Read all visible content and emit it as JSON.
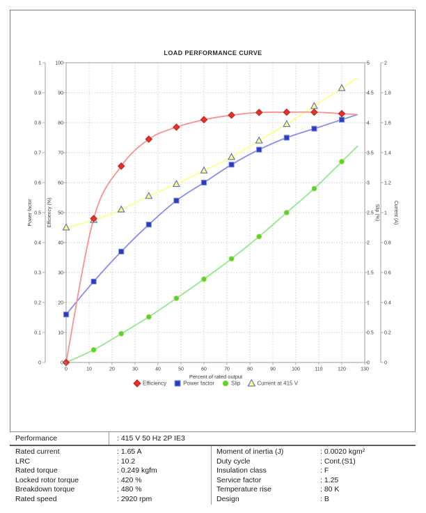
{
  "chart": {
    "title": "LOAD PERFORMANCE CURVE",
    "x_axis": {
      "label": "Percent of rated output",
      "min": 0,
      "max": 130,
      "step": 10
    },
    "axes": {
      "power_factor": {
        "label": "Power factor",
        "min": 0,
        "max": 1,
        "step": 0.1
      },
      "efficiency": {
        "label": "Efficiency (%)",
        "min": 0,
        "max": 100,
        "step": 10
      },
      "slip": {
        "label": "Slip (%)",
        "min": 0,
        "max": 5,
        "step": 0.5
      },
      "current": {
        "label": "Current (A)",
        "min": 0,
        "max": 2,
        "step": 0.2
      }
    },
    "grid_color": "#cdcdcd",
    "spine_color": "#9e9e9e"
  },
  "chart_data": {
    "type": "line",
    "title": "LOAD PERFORMANCE CURVE",
    "xlabel": "Percent of rated output",
    "x": [
      0,
      12,
      24,
      36,
      48,
      60,
      72,
      84,
      96,
      108,
      120
    ],
    "xlim": [
      0,
      130
    ],
    "grid": true,
    "legend_position": "bottom",
    "series": [
      {
        "name": "Efficiency",
        "axis": "efficiency",
        "ylim": [
          0,
          100
        ],
        "marker": "diamond",
        "marker_color": "#e63229",
        "marker_edge": "#b92020",
        "line_color": "#f99191",
        "values": [
          0,
          48,
          65.5,
          74.5,
          78.5,
          81,
          82.5,
          83.4,
          83.5,
          83.5,
          83
        ]
      },
      {
        "name": "Power factor",
        "axis": "power_factor",
        "ylim": [
          0,
          1
        ],
        "marker": "square",
        "marker_color": "#2c3cba",
        "marker_edge": "#7e90ea",
        "line_color": "#8b8bf0",
        "values": [
          0.16,
          0.27,
          0.37,
          0.46,
          0.54,
          0.6,
          0.66,
          0.71,
          0.75,
          0.78,
          0.81
        ]
      },
      {
        "name": "Slip",
        "axis": "slip",
        "ylim": [
          0,
          5
        ],
        "marker": "circle",
        "marker_color": "#47d83e",
        "marker_edge": "#b4cc30",
        "line_color": "#8fe98f",
        "values": [
          0,
          0.21,
          0.48,
          0.76,
          1.07,
          1.39,
          1.73,
          2.1,
          2.5,
          2.9,
          3.35
        ]
      },
      {
        "name": "Current at 415 V",
        "axis": "current",
        "ylim": [
          0,
          2
        ],
        "marker": "triangle",
        "marker_color": "#ffff73",
        "marker_edge": "#5b6bd1",
        "line_color": "#ffff85",
        "values": [
          0.9,
          0.95,
          1.02,
          1.11,
          1.19,
          1.28,
          1.37,
          1.48,
          1.59,
          1.71,
          1.83
        ]
      }
    ]
  },
  "table": {
    "separator": ":",
    "header": {
      "label": "Performance",
      "value": "415 V 50 Hz 2P IE3"
    },
    "left_rows": [
      {
        "label": "Rated current",
        "value": "1.65 A"
      },
      {
        "label": "LRC",
        "value": "10.2"
      },
      {
        "label": "Rated torque",
        "value": "0.249 kgfm"
      },
      {
        "label": "Locked rotor torque",
        "value": "420 %"
      },
      {
        "label": "Breakdown torque",
        "value": "480 %"
      },
      {
        "label": "Rated speed",
        "value": "2920 rpm"
      }
    ],
    "right_rows": [
      {
        "label": "Moment of inertia (J)",
        "value": "0.0020 kgm²"
      },
      {
        "label": "Duty cycle",
        "value": "Cont.(S1)"
      },
      {
        "label": "Insulation class",
        "value": "F"
      },
      {
        "label": "Service factor",
        "value": "1.25"
      },
      {
        "label": "Temperature rise",
        "value": "80 K"
      },
      {
        "label": "Design",
        "value": "B"
      }
    ]
  }
}
